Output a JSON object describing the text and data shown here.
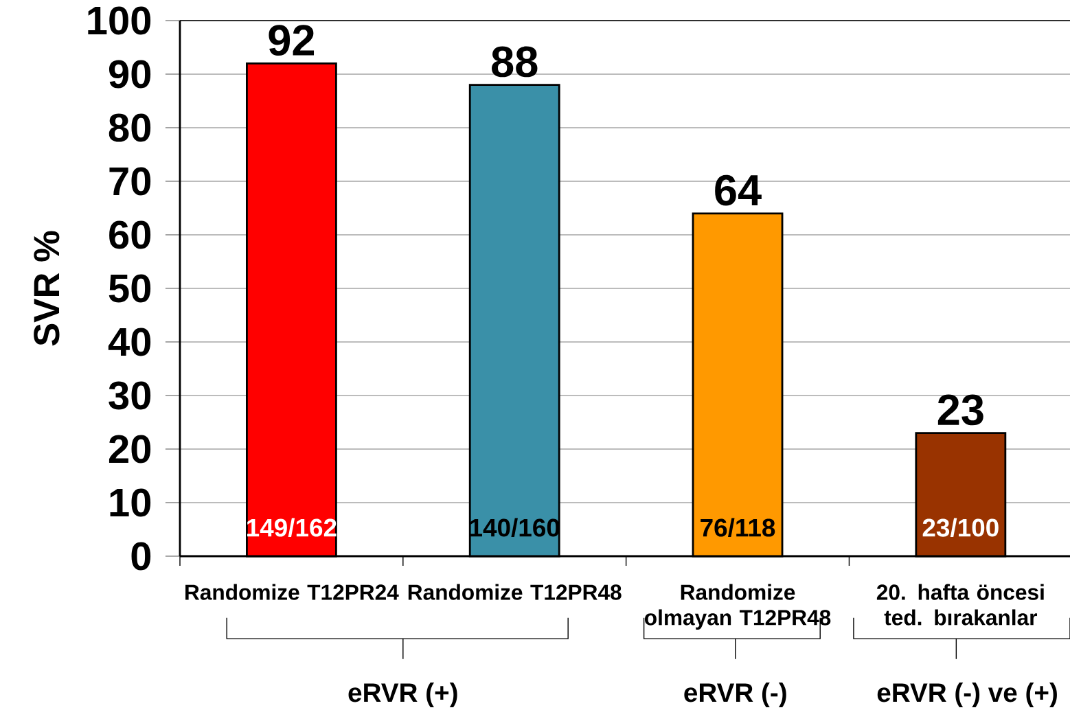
{
  "chart_data": {
    "type": "bar",
    "ylabel": "SVR  %",
    "categories": [
      "Randomize  T12PR24",
      "Randomize T12PR48",
      "Randomize olmayan T12PR48",
      "20. hafta öncesi ted. bırakanlar"
    ],
    "values": [
      92,
      88,
      64,
      23
    ],
    "colors": [
      "#ff0000",
      "#3a90a8",
      "#ff9900",
      "#993300"
    ],
    "ylim": [
      0,
      100
    ],
    "yticks": [
      0,
      10,
      20,
      30,
      40,
      50,
      60,
      70,
      80,
      90,
      100
    ],
    "grid": "y",
    "data_labels": true,
    "annotations": [
      "149/162",
      "140/160",
      "76/118",
      "23/100",
      "eRVR (+)",
      "eRVR (-)",
      "eRVR (-) ve (+)"
    ]
  }
}
